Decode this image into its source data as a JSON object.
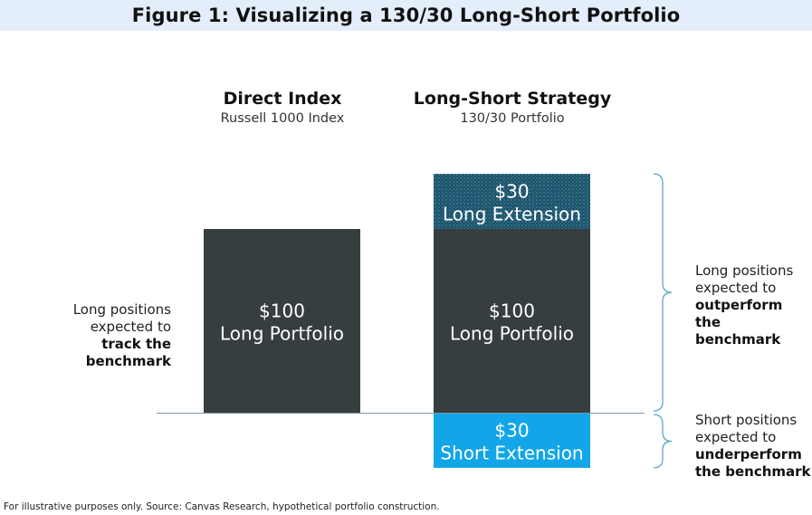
{
  "title": "Figure 1: Visualizing a 130/30 Long-Short Portfolio",
  "columns": [
    {
      "heading": "Direct Index",
      "subheading": "Russell 1000 Index"
    },
    {
      "heading": "Long-Short Strategy",
      "subheading": "130/30 Portfolio"
    }
  ],
  "chart_data": {
    "type": "bar",
    "stacked": true,
    "categories": [
      "Direct Index",
      "Long-Short Strategy"
    ],
    "segments": [
      {
        "category": "Direct Index",
        "value": 100,
        "amount_label": "$100",
        "label": "Long Portfolio",
        "color": "#373e40"
      },
      {
        "category": "Long-Short Strategy",
        "value": 100,
        "amount_label": "$100",
        "label": "Long Portfolio",
        "color": "#373e40"
      },
      {
        "category": "Long-Short Strategy",
        "value": 30,
        "amount_label": "$30",
        "label": "Long Extension",
        "color": "#1f4e62",
        "pattern": "dotted"
      },
      {
        "category": "Long-Short Strategy",
        "value": -30,
        "amount_label": "$30",
        "label": "Short Extension",
        "color": "#12a6e8"
      }
    ],
    "baseline": 0,
    "ylim": [
      -30,
      130
    ]
  },
  "annotations": {
    "left": {
      "lines": [
        "Long positions",
        "expected to"
      ],
      "bold_lines": [
        "track the",
        "benchmark"
      ]
    },
    "right_long": {
      "lines": [
        "Long positions",
        "expected to"
      ],
      "bold_lines": [
        "outperform the",
        "benchmark"
      ]
    },
    "right_short": {
      "lines": [
        "Short positions",
        "expected to"
      ],
      "bold_lines": [
        "underperform",
        "the benchmark"
      ]
    }
  },
  "footer": "For illustrative purposes only. Source: Canvas Research, hypothetical portfolio construction.",
  "colors": {
    "title_bg": "#e4eefa",
    "long": "#373e40",
    "extension": "#1f4e62",
    "short": "#12a6e8",
    "bracket": "#5aa7cf",
    "baseline": "#7f9aa8"
  }
}
